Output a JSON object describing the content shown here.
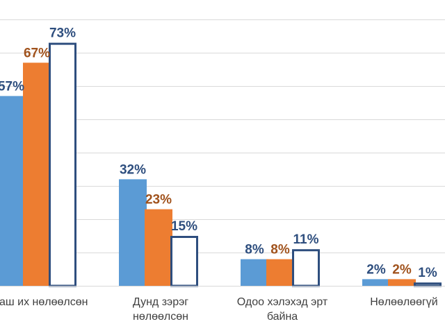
{
  "chart_data": {
    "type": "bar",
    "categories": [
      [
        "Маш их нөлөөлсөн"
      ],
      [
        "Дунд зэрэг",
        "нөлөөлсөн"
      ],
      [
        "Одоо хэлэхэд эрт",
        "байна"
      ],
      [
        "Нөлөөлөөгүй"
      ]
    ],
    "series": [
      {
        "values": [
          57,
          32,
          8,
          2
        ],
        "color": "#5B9BD5",
        "label_color": "#2E4E7E",
        "style": "filled"
      },
      {
        "values": [
          67,
          23,
          8,
          2
        ],
        "color": "#ED7D31",
        "label_color": "#A0521C",
        "style": "filled"
      },
      {
        "values": [
          73,
          15,
          11,
          1
        ],
        "color": "#FFFFFF",
        "stroke": "#2E4E7E",
        "label_color": "#2E4E7E",
        "style": "outline"
      }
    ],
    "value_suffix": "%",
    "ylim": [
      0,
      80
    ],
    "grid": true,
    "gridline_color": "#D9D9D9"
  }
}
